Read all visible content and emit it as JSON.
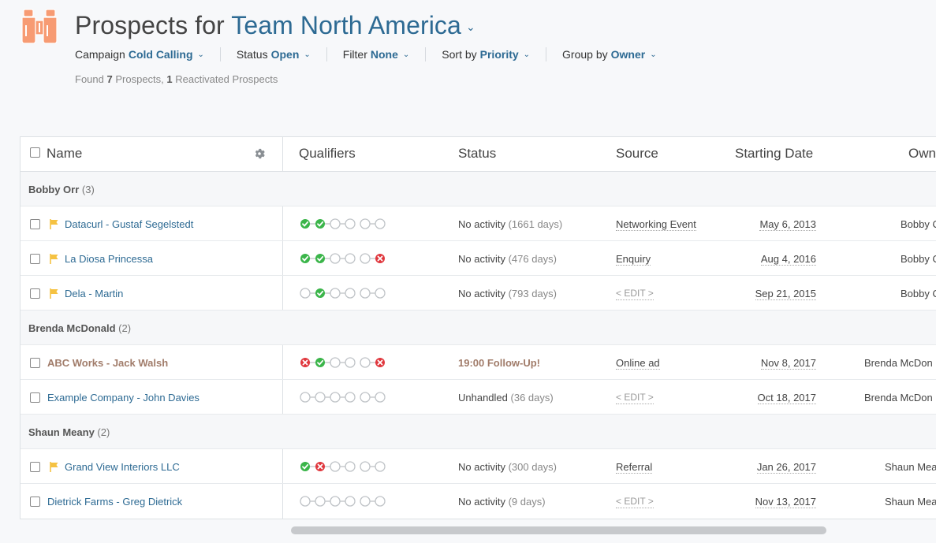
{
  "header": {
    "title_prefix": "Prospects for",
    "team": "Team North America",
    "caret": "⌄"
  },
  "filters": [
    {
      "label": "Campaign",
      "value": "Cold Calling"
    },
    {
      "label": "Status",
      "value": "Open"
    },
    {
      "label": "Filter",
      "value": "None"
    },
    {
      "label": "Sort by",
      "value": "Priority"
    },
    {
      "label": "Group by",
      "value": "Owner"
    }
  ],
  "summary": {
    "found_label": "Found",
    "prospect_count": "7",
    "prospects_label": "Prospects,",
    "reactivated_count": "1",
    "reactivated_label": "Reactivated Prospects"
  },
  "columns": {
    "name": "Name",
    "qualifiers": "Qualifiers",
    "status": "Status",
    "source": "Source",
    "starting_date": "Starting Date",
    "owner": "Owner"
  },
  "groups": [
    {
      "name": "Bobby Orr",
      "count": "(3)",
      "rows": [
        {
          "name": "Datacurl - Gustaf Segelstedt",
          "flag": true,
          "bold": false,
          "qualifiers": [
            "check",
            "check",
            "empty",
            "empty",
            "empty",
            "empty"
          ],
          "status": "No activity",
          "status_detail": "(1661 days)",
          "source": "Networking Event",
          "date": "May 6, 2013",
          "owner": "Bobby O"
        },
        {
          "name": "La Diosa Princessa",
          "flag": true,
          "bold": false,
          "qualifiers": [
            "check",
            "check",
            "empty",
            "empty",
            "empty",
            "cross"
          ],
          "status": "No activity",
          "status_detail": "(476 days)",
          "source": "Enquiry",
          "date": "Aug 4, 2016",
          "owner": "Bobby O"
        },
        {
          "name": "Dela - Martin",
          "flag": true,
          "bold": false,
          "qualifiers": [
            "empty",
            "check",
            "empty",
            "empty",
            "empty",
            "empty"
          ],
          "status": "No activity",
          "status_detail": "(793 days)",
          "source": "< EDIT >",
          "date": "Sep 21, 2015",
          "owner": "Bobby O"
        }
      ]
    },
    {
      "name": "Brenda McDonald",
      "count": "(2)",
      "rows": [
        {
          "name": "ABC Works - Jack Walsh",
          "flag": false,
          "bold": true,
          "qualifiers": [
            "cross",
            "check",
            "empty",
            "empty",
            "empty",
            "cross"
          ],
          "status": "19:00 Follow-Up!",
          "status_detail": "",
          "source": "Online ad",
          "date": "Nov 8, 2017",
          "owner": "Brenda McDon"
        },
        {
          "name": "Example Company - John Davies",
          "flag": false,
          "bold": false,
          "qualifiers": [
            "empty",
            "empty",
            "empty",
            "empty",
            "empty",
            "empty"
          ],
          "status": "Unhandled",
          "status_detail": "(36 days)",
          "source": "< EDIT >",
          "date": "Oct 18, 2017",
          "owner": "Brenda McDon"
        }
      ]
    },
    {
      "name": "Shaun Meany",
      "count": "(2)",
      "rows": [
        {
          "name": "Grand View Interiors LLC",
          "flag": true,
          "bold": false,
          "qualifiers": [
            "check",
            "cross",
            "empty",
            "empty",
            "empty",
            "empty"
          ],
          "status": "No activity",
          "status_detail": "(300 days)",
          "source": "Referral",
          "date": "Jan 26, 2017",
          "owner": "Shaun Mea"
        },
        {
          "name": "Dietrick Farms - Greg Dietrick",
          "flag": false,
          "bold": false,
          "qualifiers": [
            "empty",
            "empty",
            "empty",
            "empty",
            "empty",
            "empty"
          ],
          "status": "No activity",
          "status_detail": "(9 days)",
          "source": "< EDIT >",
          "date": "Nov 13, 2017",
          "owner": "Shaun Mea"
        }
      ]
    }
  ],
  "colors": {
    "accent": "#2d6a93",
    "logo": "#f79b73",
    "flag": "#f5c242",
    "check": "#3bb54a",
    "cross": "#e0383e",
    "empty": "#bfc3c7",
    "followup": "#a17c6a"
  },
  "icons": {
    "logo": "binoculars-icon",
    "settings": "gear-icon",
    "flag": "flag-icon",
    "check": "check-circle-icon",
    "cross": "cross-circle-icon",
    "empty": "empty-circle-icon"
  }
}
